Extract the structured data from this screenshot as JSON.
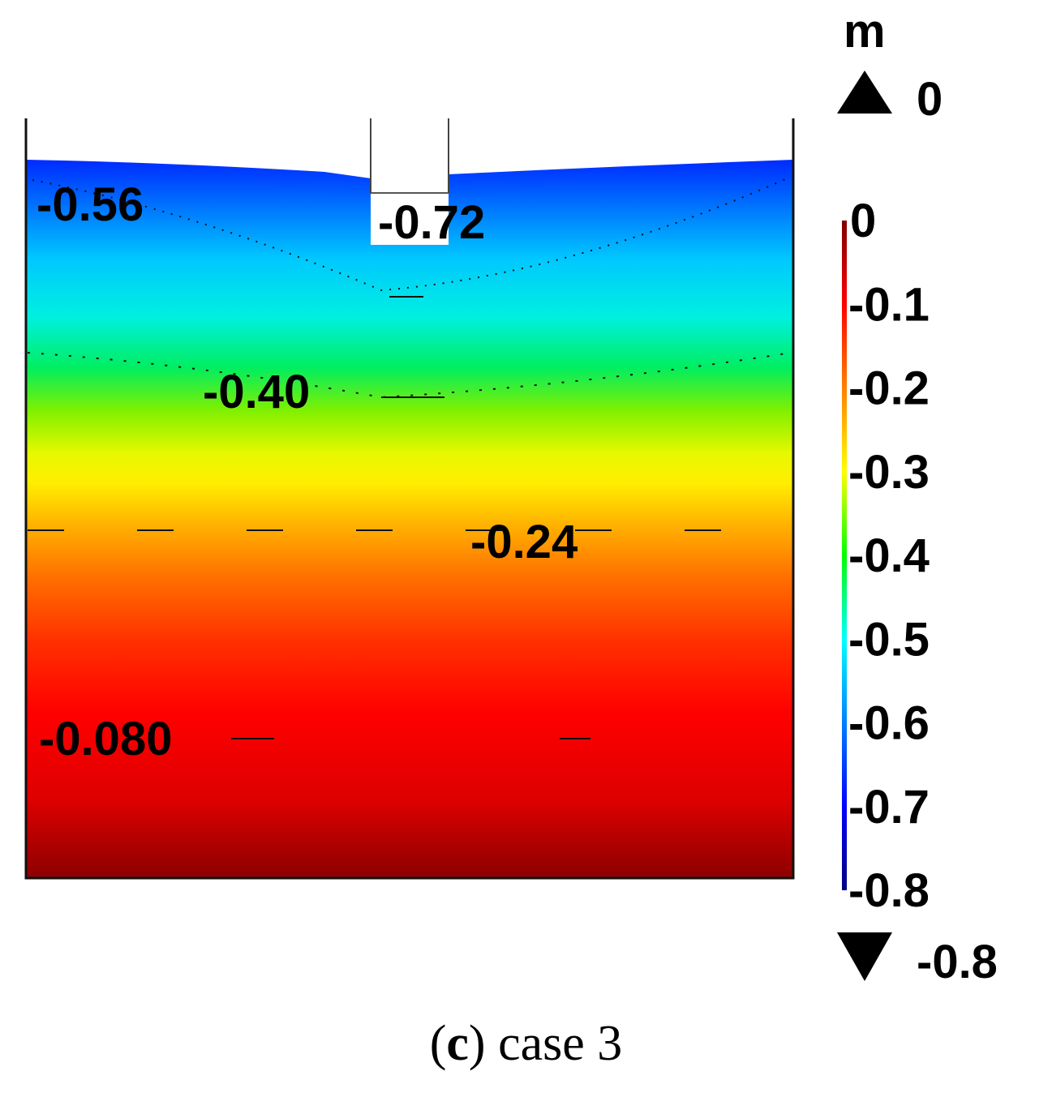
{
  "chart_data": {
    "type": "heatmap",
    "title": "",
    "variable_unit": "m",
    "colorbar": {
      "min": -0.8,
      "max": 0,
      "ticks": [
        "0",
        "-0.1",
        "-0.2",
        "-0.3",
        "-0.4",
        "-0.5",
        "-0.6",
        "-0.7",
        "-0.8"
      ],
      "overflow_max_label": "0",
      "overflow_min_label": "-0.8",
      "colormap": [
        "#00007f",
        "#0000ff",
        "#00ffff",
        "#00ff00",
        "#ffff00",
        "#ff8000",
        "#ff0000",
        "#7f0000"
      ]
    },
    "contour_labels": [
      {
        "text": "-0.56",
        "value": -0.56
      },
      {
        "text": "-0.72",
        "value": -0.72
      },
      {
        "text": "-0.40",
        "value": -0.4
      },
      {
        "text": "-0.24",
        "value": -0.24
      },
      {
        "text": "-0.080",
        "value": -0.08
      }
    ]
  },
  "caption": {
    "open_paren": "(",
    "letter": "c",
    "close_paren": ")",
    "text": " case 3"
  }
}
